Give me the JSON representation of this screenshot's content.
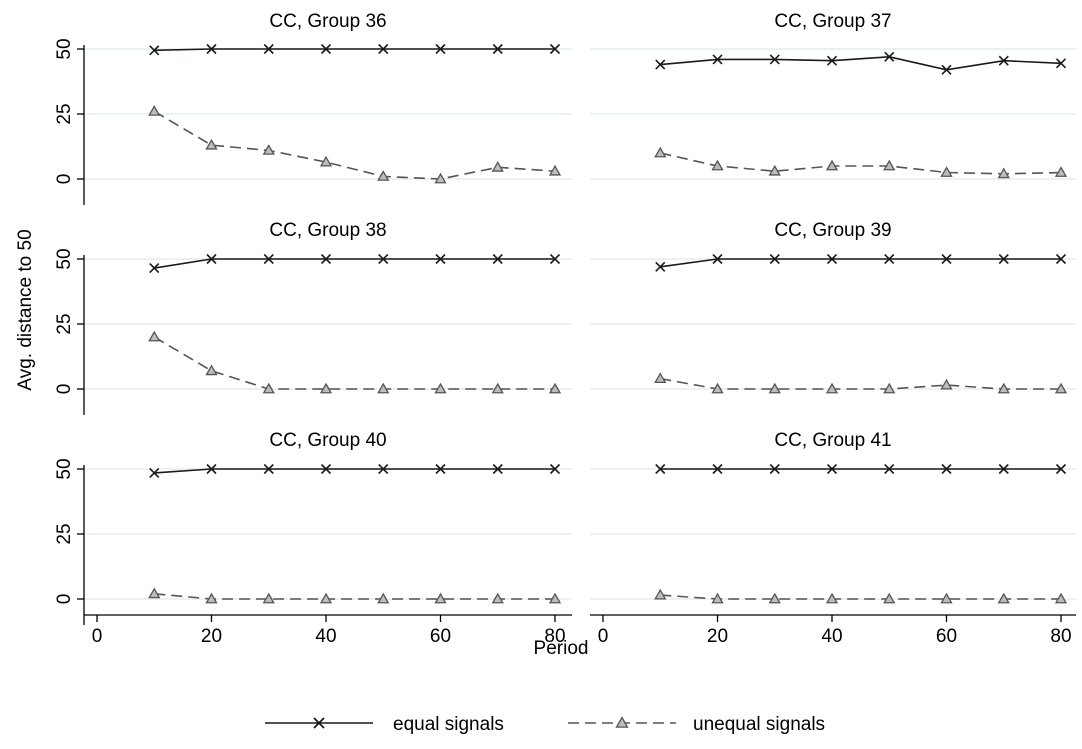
{
  "chart_data": {
    "type": "line",
    "ylabel": "Avg. distance to 50",
    "xlabel": "Period",
    "xlim": [
      0,
      80
    ],
    "ylim": [
      0,
      50
    ],
    "xticks": [
      "0",
      "20",
      "40",
      "60",
      "80"
    ],
    "yticks": [
      "0",
      "25",
      "50"
    ],
    "grid": true,
    "legend_position": "bottom",
    "colors": {
      "equal": "#1a1a1a",
      "unequal": "#555555",
      "grid": "#eaf2f3"
    },
    "x": [
      10,
      20,
      30,
      40,
      50,
      60,
      70,
      80
    ],
    "legend": [
      {
        "key": "equal",
        "label": "equal signals",
        "style": "solid",
        "marker": "x"
      },
      {
        "key": "unequal",
        "label": "unequal signals",
        "style": "dashed",
        "marker": "triangle"
      }
    ],
    "panels": [
      {
        "title": "CC, Group 36",
        "series": [
          {
            "key": "equal",
            "values": [
              49.5,
              50,
              50,
              50,
              50,
              50,
              50,
              50
            ]
          },
          {
            "key": "unequal",
            "values": [
              26,
              13,
              11,
              6.5,
              1,
              0,
              4.5,
              3
            ]
          }
        ]
      },
      {
        "title": "CC, Group 37",
        "series": [
          {
            "key": "equal",
            "values": [
              44,
              46,
              46,
              45.5,
              47,
              42,
              45.5,
              44.5
            ]
          },
          {
            "key": "unequal",
            "values": [
              10,
              5,
              3,
              5,
              5,
              2.5,
              2,
              2.5
            ]
          }
        ]
      },
      {
        "title": "CC, Group 38",
        "series": [
          {
            "key": "equal",
            "values": [
              46.5,
              50,
              50,
              50,
              50,
              50,
              50,
              50
            ]
          },
          {
            "key": "unequal",
            "values": [
              20,
              7,
              0,
              0,
              0,
              0,
              0,
              0
            ]
          }
        ]
      },
      {
        "title": "CC, Group 39",
        "series": [
          {
            "key": "equal",
            "values": [
              47,
              50,
              50,
              50,
              50,
              50,
              50,
              50
            ]
          },
          {
            "key": "unequal",
            "values": [
              4,
              0,
              0,
              0,
              0,
              1.5,
              0,
              0
            ]
          }
        ]
      },
      {
        "title": "CC, Group 40",
        "series": [
          {
            "key": "equal",
            "values": [
              48.5,
              50,
              50,
              50,
              50,
              50,
              50,
              50
            ]
          },
          {
            "key": "unequal",
            "values": [
              2,
              0,
              0,
              0,
              0,
              0,
              0,
              0
            ]
          }
        ]
      },
      {
        "title": "CC, Group 41",
        "series": [
          {
            "key": "equal",
            "values": [
              50,
              50,
              50,
              50,
              50,
              50,
              50,
              50
            ]
          },
          {
            "key": "unequal",
            "values": [
              1.5,
              0,
              0,
              0,
              0,
              0,
              0,
              0
            ]
          }
        ]
      }
    ]
  }
}
